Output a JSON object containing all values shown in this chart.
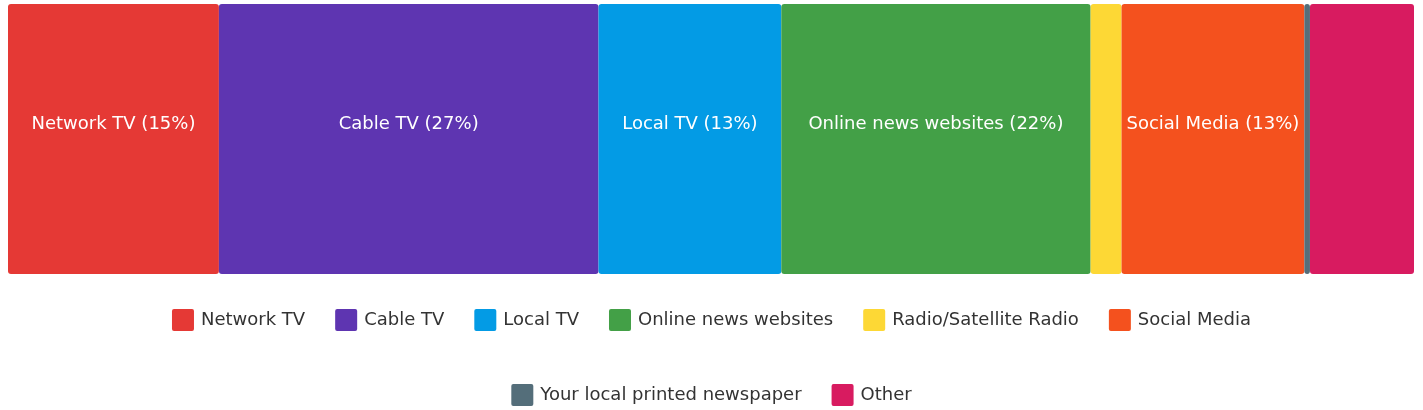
{
  "chart_data": {
    "type": "bar",
    "orientation": "horizontal",
    "stacked": true,
    "categories": [
      null
    ],
    "xlim": [
      0,
      100
    ],
    "tick_labels": false,
    "legend": "bottom",
    "series": [
      {
        "name": "Network TV",
        "color": "#e53935",
        "values": [
          15
        ],
        "value_labels": [
          "Network TV (15%)"
        ]
      },
      {
        "name": "Cable TV",
        "color": "#5e35b1",
        "values": [
          27
        ],
        "value_labels": [
          "Cable TV (27%)"
        ]
      },
      {
        "name": "Local TV",
        "color": "#039be5",
        "values": [
          13
        ],
        "value_labels": [
          "Local TV (13%)"
        ]
      },
      {
        "name": "Online news websites",
        "color": "#43a047",
        "values": [
          22
        ],
        "value_labels": [
          "Online news websites (22%)"
        ]
      },
      {
        "name": "Radio/Satellite Radio",
        "color": "#fdd835",
        "values": [
          2.2
        ],
        "value_labels": [
          null
        ]
      },
      {
        "name": "Social Media",
        "color": "#f4511e",
        "values": [
          13
        ],
        "value_labels": [
          "Social Media (13%)"
        ]
      },
      {
        "name": "Your local printed newspaper",
        "color": "#546e7a",
        "values": [
          0.4
        ],
        "value_labels": [
          null
        ]
      },
      {
        "name": "Other",
        "color": "#d81b60",
        "values": [
          7.4
        ],
        "value_labels": [
          null
        ]
      }
    ]
  }
}
